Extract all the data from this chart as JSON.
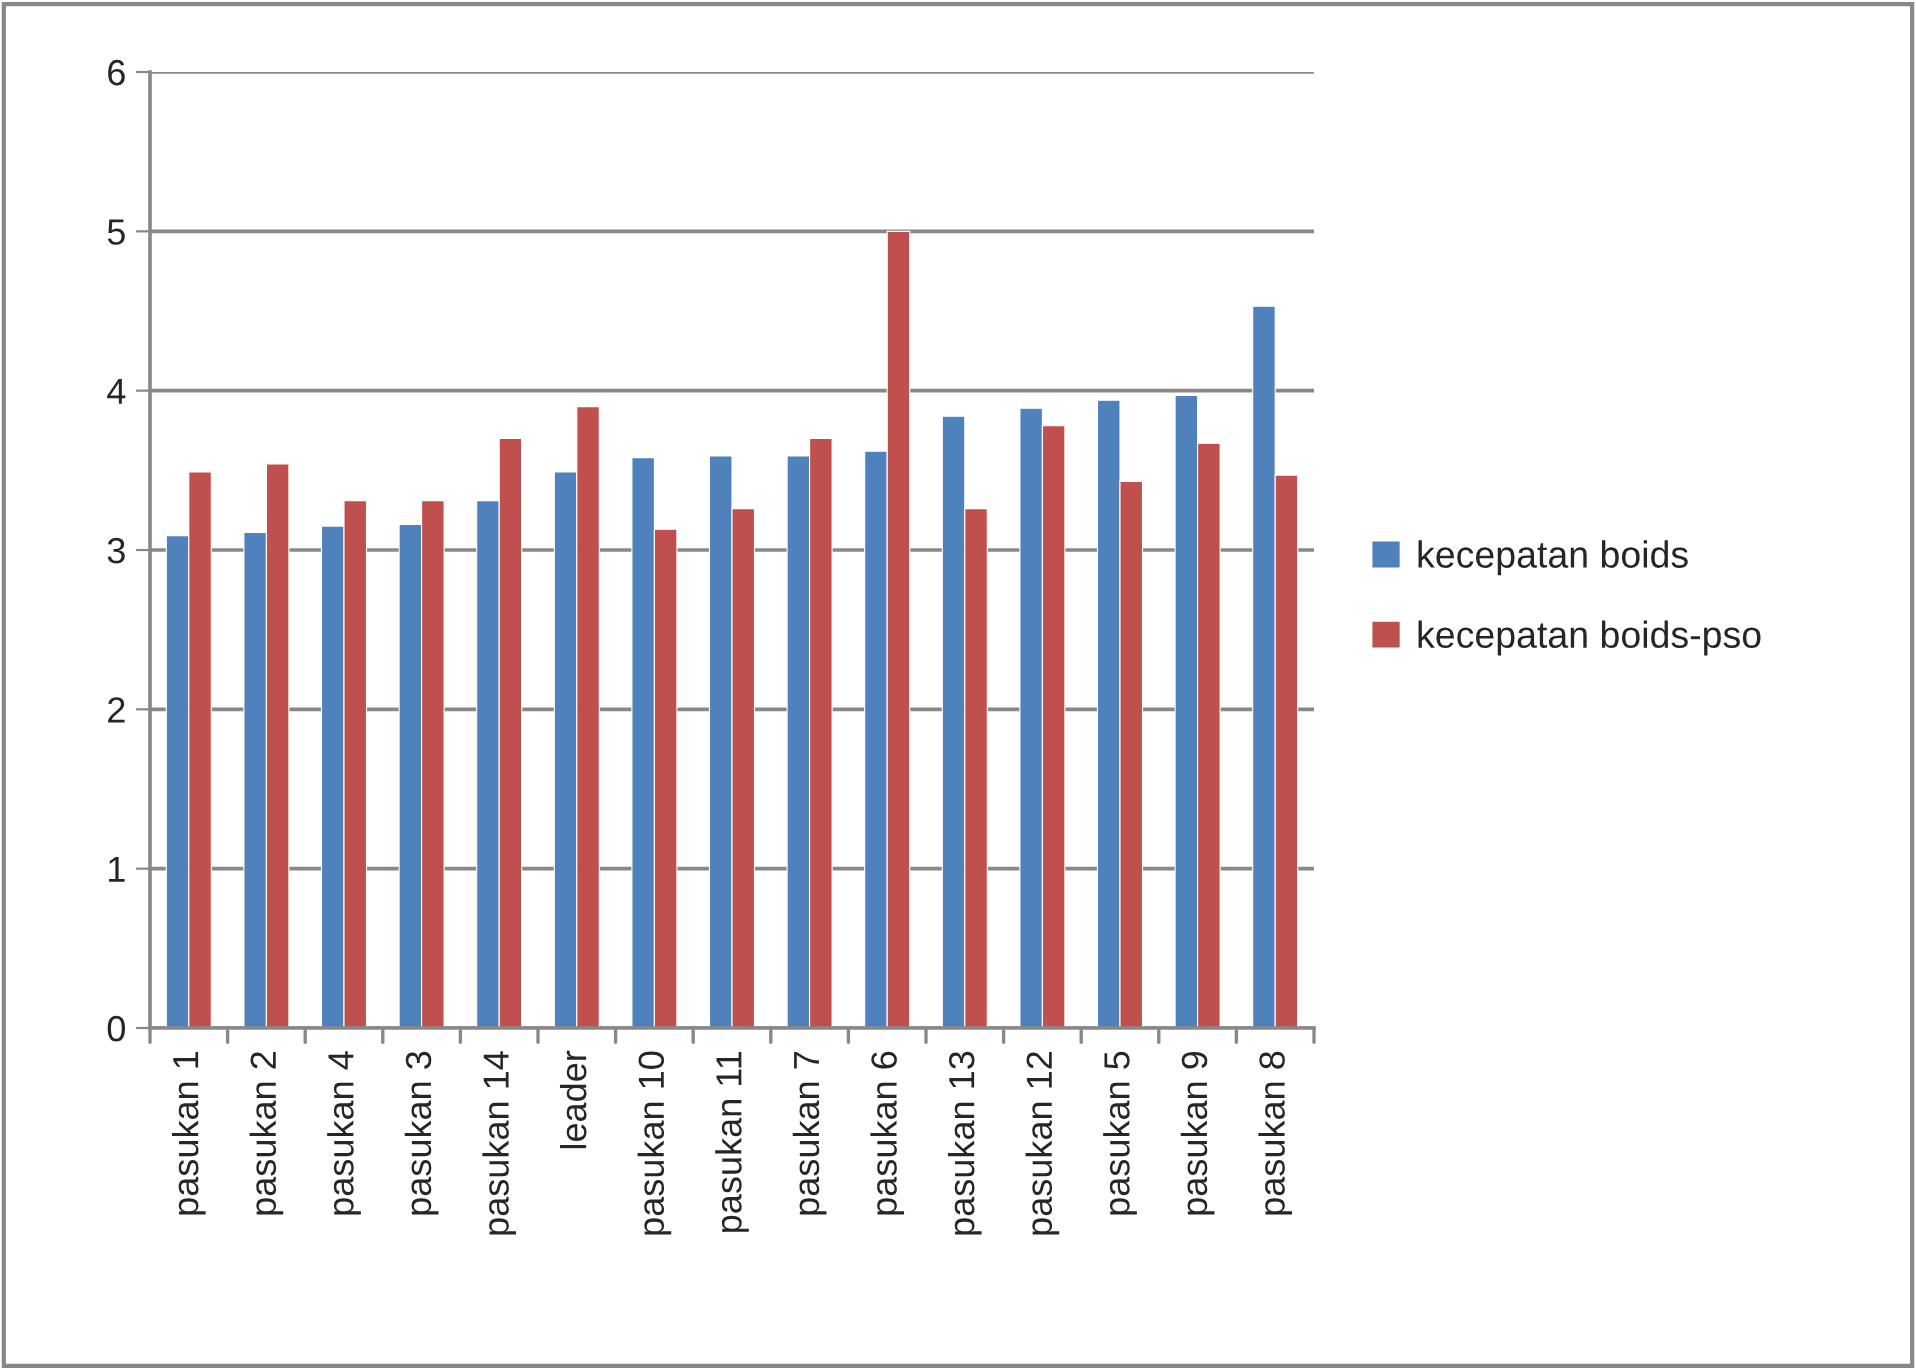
{
  "chart_data": {
    "type": "bar",
    "categories": [
      "pasukan 1",
      "pasukan 2",
      "pasukan 4",
      "pasukan 3",
      "pasukan 14",
      "leader",
      "pasukan 10",
      "pasukan 11",
      "pasukan 7",
      "pasukan 6",
      "pasukan 13",
      "pasukan 12",
      "pasukan 5",
      "pasukan 9",
      "pasukan 8"
    ],
    "series": [
      {
        "name": "kecepatan boids",
        "color": "#4f81bd",
        "values": [
          3.09,
          3.11,
          3.15,
          3.16,
          3.31,
          3.49,
          3.58,
          3.59,
          3.59,
          3.62,
          3.84,
          3.89,
          3.94,
          3.97,
          4.53
        ]
      },
      {
        "name": "kecepatan boids-pso",
        "color": "#c0504d",
        "values": [
          3.49,
          3.54,
          3.31,
          3.31,
          3.7,
          3.9,
          3.13,
          3.26,
          3.7,
          5.0,
          3.26,
          3.78,
          3.43,
          3.67,
          3.47
        ]
      }
    ],
    "ylim": [
      0,
      6
    ],
    "yticks": [
      0,
      1,
      2,
      3,
      4,
      5,
      6
    ],
    "grid": "y",
    "legend": "right"
  }
}
